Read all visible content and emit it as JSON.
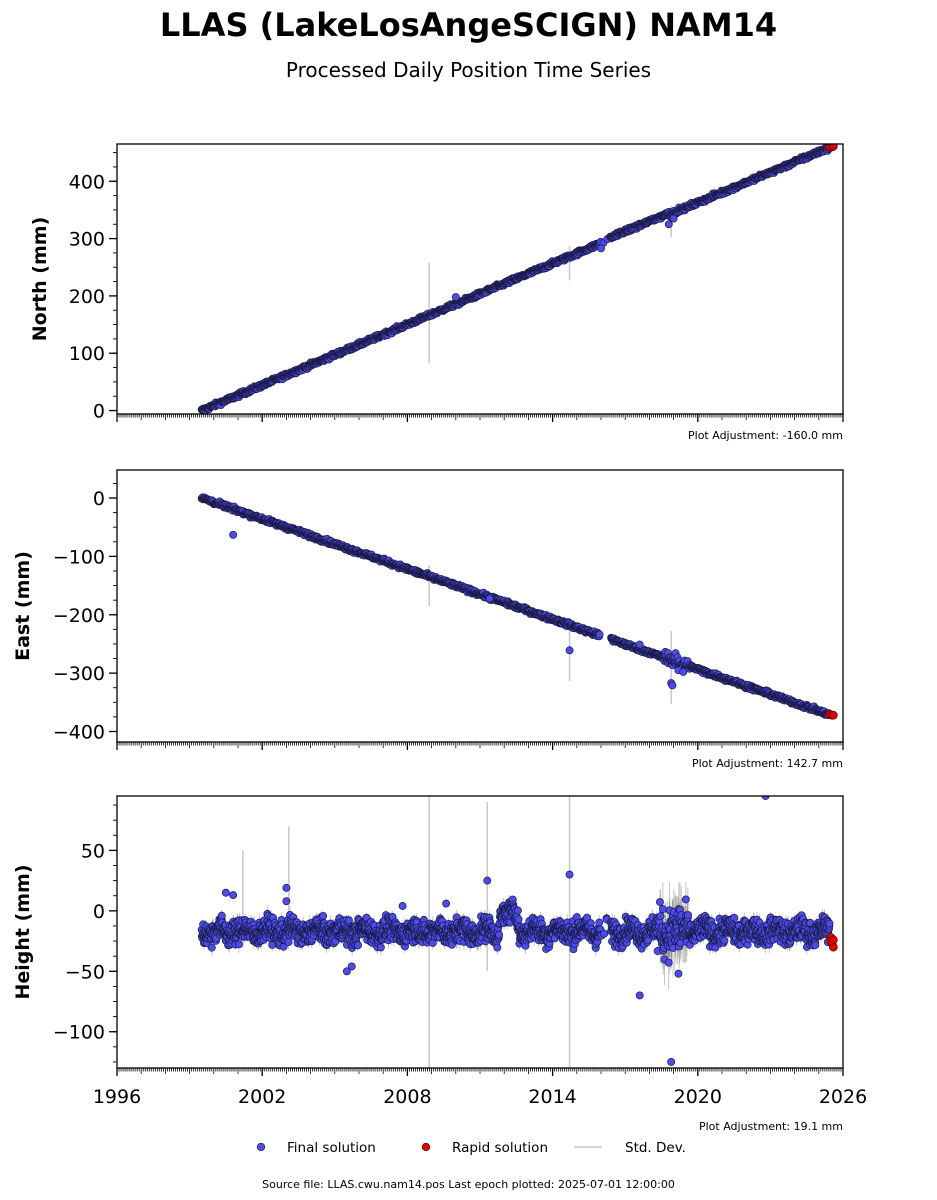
{
  "chart_data": {
    "type": "scatter",
    "title": "LLAS (LakeLosAngeSCIGN) NAM14",
    "subtitle": "Processed Daily Position Time Series",
    "xlim": [
      1996,
      2026
    ],
    "x_ticks": [
      1996,
      2002,
      2008,
      2014,
      2020,
      2026
    ],
    "x_tick_labels": [
      "1996",
      "2002",
      "2008",
      "2014",
      "2020",
      "2026"
    ],
    "colors": {
      "final": "#4b4bef",
      "rapid": "#e00000",
      "edge": "#1a1a40",
      "stddev": "#c8c8c8"
    },
    "panels": [
      {
        "ylabel": "North (mm)",
        "ylim": [
          -6,
          465
        ],
        "y_ticks": [
          0,
          100,
          200,
          300,
          400
        ],
        "y_tick_labels": [
          "0",
          "100",
          "200",
          "300",
          "400"
        ],
        "adjustment": "Plot Adjustment: -160.0 mm",
        "trend": [
          [
            1999.5,
            0
          ],
          [
            2025.5,
            460
          ]
        ],
        "offsets": [
          {
            "from": 2016.1,
            "to": 2018.8,
            "dy": 3
          }
        ],
        "outliers": [
          [
            2010.0,
            198
          ],
          [
            2019.0,
            335
          ],
          [
            2018.8,
            325
          ],
          [
            2016.0,
            283
          ]
        ],
        "errorbars": [
          [
            2008.9,
            170,
            175
          ],
          [
            2014.7,
            257,
            60
          ],
          [
            2018.9,
            330,
            55
          ]
        ],
        "rapid": [
          [
            2025.45,
            459
          ],
          [
            2025.55,
            460
          ],
          [
            2025.6,
            461
          ]
        ]
      },
      {
        "ylabel": "East (mm)",
        "ylim": [
          -418,
          48
        ],
        "y_ticks": [
          0,
          -100,
          -200,
          -300,
          -400
        ],
        "y_tick_labels": [
          "0",
          "−100",
          "−200",
          "−300",
          "−400"
        ],
        "adjustment": "Plot Adjustment: 142.7 mm",
        "trend": [
          [
            1999.5,
            0
          ],
          [
            2025.5,
            -372
          ]
        ],
        "offsets": [],
        "outliers": [
          [
            2000.8,
            -63
          ],
          [
            2014.7,
            -261
          ],
          [
            2018.9,
            -317
          ],
          [
            2018.95,
            -321
          ],
          [
            2011.4,
            -172
          ],
          [
            2017.6,
            -251
          ],
          [
            2019.2,
            -295
          ],
          [
            2019.4,
            -298
          ]
        ],
        "errorbars": [
          [
            2008.9,
            -150,
            70
          ],
          [
            2014.7,
            -261,
            105
          ],
          [
            2018.9,
            -290,
            125
          ]
        ],
        "rapid": [
          [
            2025.45,
            -371
          ],
          [
            2025.55,
            -372
          ],
          [
            2025.6,
            -372
          ]
        ]
      },
      {
        "ylabel": "Height (mm)",
        "ylim": [
          -130,
          95
        ],
        "y_ticks": [
          50,
          0,
          -50,
          -100
        ],
        "y_tick_labels": [
          "50",
          "0",
          "−50",
          "−100"
        ],
        "adjustment": "Plot Adjustment: 19.1 mm",
        "mean": -17,
        "outliers": [
          [
            2000.5,
            15
          ],
          [
            2000.8,
            13
          ],
          [
            2003.0,
            19
          ],
          [
            2003.0,
            8
          ],
          [
            2005.5,
            -50
          ],
          [
            2005.7,
            -46
          ],
          [
            2007.8,
            4
          ],
          [
            2009.6,
            6
          ],
          [
            2011.3,
            25
          ],
          [
            2014.7,
            30
          ],
          [
            2017.6,
            -70
          ],
          [
            2018.9,
            -125
          ],
          [
            2019.2,
            -52
          ],
          [
            2022.8,
            95
          ]
        ],
        "errorbars": [
          [
            2008.9,
            -20,
            250
          ],
          [
            2011.3,
            20,
            140
          ],
          [
            2014.7,
            -20,
            250
          ],
          [
            2003.1,
            30,
            80
          ],
          [
            2001.2,
            10,
            80
          ]
        ],
        "rapid": [
          [
            2025.5,
            -22
          ],
          [
            2025.55,
            -27
          ],
          [
            2025.6,
            -30
          ],
          [
            2025.5,
            -25
          ],
          [
            2025.6,
            -24
          ]
        ]
      }
    ],
    "legend": [
      {
        "label": "Final solution",
        "kind": "final"
      },
      {
        "label": "Rapid solution",
        "kind": "rapid"
      },
      {
        "label": "Std. Dev.",
        "kind": "stddev"
      }
    ],
    "legend_placement": "bottom-center",
    "footer": "Source file: LLAS.cwu.nam14.pos  Last epoch plotted: 2025-07-01 12:00:00"
  }
}
